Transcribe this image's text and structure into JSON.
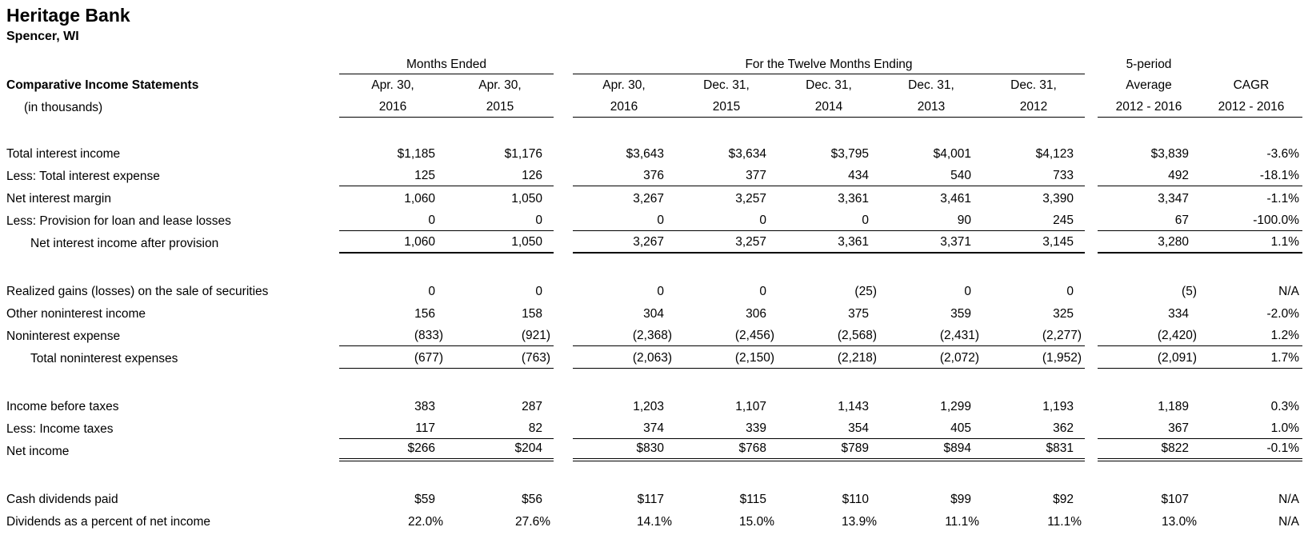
{
  "company": {
    "name": "Heritage Bank",
    "location": "Spencer, WI"
  },
  "report": {
    "title": "Comparative Income Statements",
    "subtitle": "(in thousands)"
  },
  "header": {
    "group1_label": "Months Ended",
    "group2_label": "For the Twelve Months Ending",
    "avg_line1": "5-period",
    "columns": [
      {
        "line1": "Apr. 30,",
        "line2": "2016"
      },
      {
        "line1": "Apr. 30,",
        "line2": "2015"
      },
      {
        "line1": "Apr. 30,",
        "line2": "2016"
      },
      {
        "line1": "Dec. 31,",
        "line2": "2015"
      },
      {
        "line1": "Dec. 31,",
        "line2": "2014"
      },
      {
        "line1": "Dec. 31,",
        "line2": "2013"
      },
      {
        "line1": "Dec. 31,",
        "line2": "2012"
      },
      {
        "line1": "Average",
        "line2": "2012 - 2016"
      },
      {
        "line1": "CAGR",
        "line2": "2012 - 2016"
      }
    ]
  },
  "rows": [
    {
      "label": "Total interest income",
      "indent": false,
      "spacer_before": false,
      "border": "none",
      "values": [
        "$1,185",
        "$1,176",
        "$3,643",
        "$3,634",
        "$3,795",
        "$4,001",
        "$4,123",
        "$3,839",
        "-3.6%"
      ]
    },
    {
      "label": "Less: Total interest expense",
      "indent": false,
      "spacer_before": false,
      "border": "thin",
      "values": [
        "125",
        "126",
        "376",
        "377",
        "434",
        "540",
        "733",
        "492",
        "-18.1%"
      ]
    },
    {
      "label": "Net interest margin",
      "indent": false,
      "spacer_before": false,
      "border": "none",
      "values": [
        "1,060",
        "1,050",
        "3,267",
        "3,257",
        "3,361",
        "3,461",
        "3,390",
        "3,347",
        "-1.1%"
      ]
    },
    {
      "label": "Less: Provision for loan and lease losses",
      "indent": false,
      "spacer_before": false,
      "border": "thin",
      "values": [
        "0",
        "0",
        "0",
        "0",
        "0",
        "90",
        "245",
        "67",
        "-100.0%"
      ]
    },
    {
      "label": "Net interest income after provision",
      "indent": true,
      "spacer_before": false,
      "border": "thick",
      "values": [
        "1,060",
        "1,050",
        "3,267",
        "3,257",
        "3,361",
        "3,371",
        "3,145",
        "3,280",
        "1.1%"
      ]
    },
    {
      "label": "Realized gains (losses) on the sale of securities",
      "indent": false,
      "spacer_before": true,
      "border": "none",
      "values": [
        "0",
        "0",
        "0",
        "0",
        "(25)",
        "0",
        "0",
        "(5)",
        "N/A"
      ]
    },
    {
      "label": "Other noninterest income",
      "indent": false,
      "spacer_before": false,
      "border": "none",
      "values": [
        "156",
        "158",
        "304",
        "306",
        "375",
        "359",
        "325",
        "334",
        "-2.0%"
      ]
    },
    {
      "label": "Noninterest expense",
      "indent": false,
      "spacer_before": false,
      "border": "thin",
      "values": [
        "(833)",
        "(921)",
        "(2,368)",
        "(2,456)",
        "(2,568)",
        "(2,431)",
        "(2,277)",
        "(2,420)",
        "1.2%"
      ]
    },
    {
      "label": "Total noninterest expenses",
      "indent": true,
      "spacer_before": false,
      "border": "thin",
      "values": [
        "(677)",
        "(763)",
        "(2,063)",
        "(2,150)",
        "(2,218)",
        "(2,072)",
        "(1,952)",
        "(2,091)",
        "1.7%"
      ]
    },
    {
      "label": "Income before taxes",
      "indent": false,
      "spacer_before": true,
      "border": "none",
      "values": [
        "383",
        "287",
        "1,203",
        "1,107",
        "1,143",
        "1,299",
        "1,193",
        "1,189",
        "0.3%"
      ]
    },
    {
      "label": "Less: Income taxes",
      "indent": false,
      "spacer_before": false,
      "border": "thin",
      "values": [
        "117",
        "82",
        "374",
        "339",
        "354",
        "405",
        "362",
        "367",
        "1.0%"
      ]
    },
    {
      "label": "Net income",
      "indent": false,
      "spacer_before": false,
      "border": "double",
      "values": [
        "$266",
        "$204",
        "$830",
        "$768",
        "$789",
        "$894",
        "$831",
        "$822",
        "-0.1%"
      ]
    },
    {
      "label": "Cash dividends paid",
      "indent": false,
      "spacer_before": true,
      "border": "none",
      "values": [
        "$59",
        "$56",
        "$117",
        "$115",
        "$110",
        "$99",
        "$92",
        "$107",
        "N/A"
      ]
    },
    {
      "label": "Dividends as a percent of net income",
      "indent": false,
      "spacer_before": false,
      "border": "none",
      "values": [
        "22.0%",
        "27.6%",
        "14.1%",
        "15.0%",
        "13.9%",
        "11.1%",
        "11.1%",
        "13.0%",
        "N/A"
      ]
    }
  ]
}
